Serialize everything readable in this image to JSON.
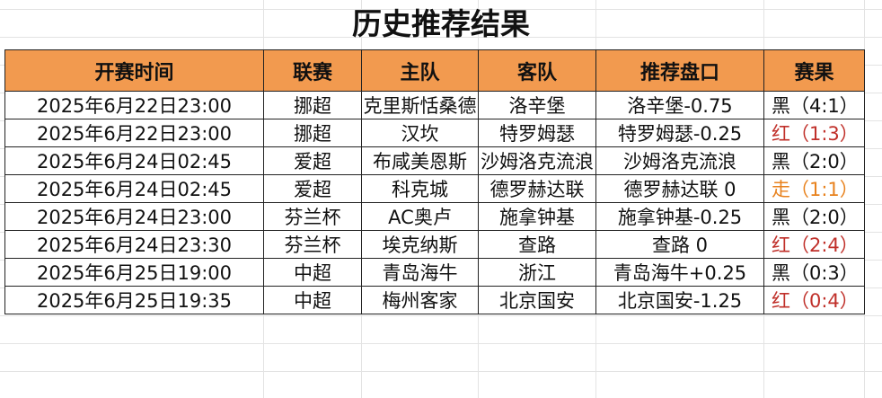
{
  "title": "历史推荐结果",
  "headers": [
    "开赛时间",
    "联赛",
    "主队",
    "客队",
    "推荐盘口",
    "赛果"
  ],
  "colors": {
    "header_bg": "#F29A4F",
    "red": "#C0302A",
    "orange": "#E8821E",
    "black": "#111111"
  },
  "rows": [
    {
      "time": "2025年6月22日23:00",
      "league": "挪超",
      "home": "克里斯恬桑德",
      "away": "洛辛堡",
      "pick": "洛辛堡-0.75",
      "result": "黑（4:1）",
      "result_color": "black"
    },
    {
      "time": "2025年6月22日23:00",
      "league": "挪超",
      "home": "汉坎",
      "away": "特罗姆瑟",
      "pick": "特罗姆瑟-0.25",
      "result": "红（1:3）",
      "result_color": "red"
    },
    {
      "time": "2025年6月24日02:45",
      "league": "爱超",
      "home": "布咸美恩斯",
      "away": "沙姆洛克流浪",
      "pick": "沙姆洛克流浪",
      "result": "黑（2:0）",
      "result_color": "black"
    },
    {
      "time": "2025年6月24日02:45",
      "league": "爱超",
      "home": "科克城",
      "away": "德罗赫达联",
      "pick": "德罗赫达联 0",
      "result": "走（1:1）",
      "result_color": "orange"
    },
    {
      "time": "2025年6月24日23:00",
      "league": "芬兰杯",
      "home": "AC奥卢",
      "away": "施拿钟基",
      "pick": "施拿钟基-0.25",
      "result": "黑（2:0）",
      "result_color": "black"
    },
    {
      "time": "2025年6月24日23:30",
      "league": "芬兰杯",
      "home": "埃克纳斯",
      "away": "查路",
      "pick": "查路 0",
      "result": "红（2:4）",
      "result_color": "red"
    },
    {
      "time": "2025年6月25日19:00",
      "league": "中超",
      "home": "青岛海牛",
      "away": "浙江",
      "pick": "青岛海牛+0.25",
      "result": "黑（0:3）",
      "result_color": "black"
    },
    {
      "time": "2025年6月25日19:35",
      "league": "中超",
      "home": "梅州客家",
      "away": "北京国安",
      "pick": "北京国安-1.25",
      "result": "红（0:4）",
      "result_color": "red"
    }
  ]
}
